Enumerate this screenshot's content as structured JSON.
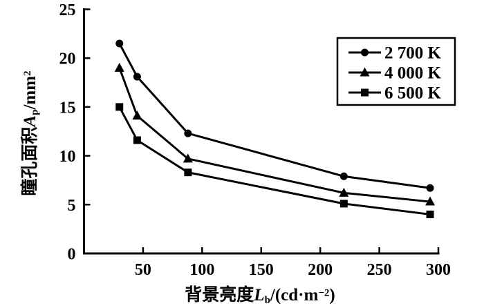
{
  "chart_data": {
    "type": "line",
    "title": "",
    "x": [
      30,
      45,
      88,
      220,
      293
    ],
    "series": [
      {
        "name": "2 700 K",
        "marker": "circle",
        "color": "#000000",
        "values": [
          21.5,
          18.1,
          12.3,
          7.9,
          6.7
        ]
      },
      {
        "name": "4 000 K",
        "marker": "triangle",
        "color": "#000000",
        "values": [
          19.0,
          14.1,
          9.7,
          6.2,
          5.3
        ]
      },
      {
        "name": "6 500 K",
        "marker": "square",
        "color": "#000000",
        "values": [
          15.0,
          11.6,
          8.3,
          5.1,
          4.0
        ]
      }
    ],
    "xlabel": "背景亮度Lb/(cd·m⁻²)",
    "ylabel": "瞳孔面积Ap/mm²",
    "xlim": [
      0,
      300
    ],
    "ylim": [
      0,
      25
    ],
    "x_ticks": [
      50,
      100,
      150,
      200,
      250,
      300
    ],
    "y_ticks": [
      0,
      5,
      10,
      15,
      20,
      25
    ],
    "grid": false,
    "legend_position": "upper right",
    "background": "#ffffff",
    "axis_color": "#000000"
  },
  "labels": {
    "ylabel": {
      "cjk": "瞳孔面积",
      "var": "A",
      "sub": "p",
      "unit": "/mm",
      "sup": "2"
    },
    "xlabel": {
      "cjk": "背景亮度",
      "var": "L",
      "sub": "b",
      "unit": "/(cd·m",
      "sup": "−2",
      "end": ")"
    }
  }
}
